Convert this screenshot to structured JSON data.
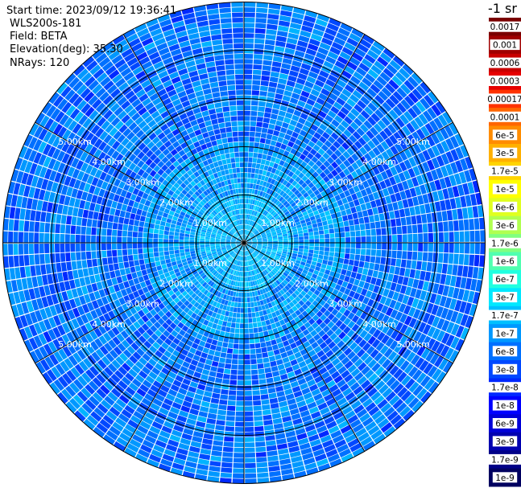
{
  "header": {
    "start_time": "Start time: 2023/09/12 19:36:41",
    "instrument": "WLS200s-181",
    "field": "Field: BETA",
    "elevation": "Elevation(deg): 35.30",
    "nrays": "NRays: 120"
  },
  "colorbar": {
    "title": "-1 sr",
    "labels": [
      "0.0017",
      "0.001",
      "0.0006",
      "0.0003",
      "0.00017",
      "0.0001",
      "6e-5",
      "3e-5",
      "1.7e-5",
      "1e-5",
      "6e-6",
      "3e-6",
      "1.7e-6",
      "1e-6",
      "6e-7",
      "3e-7",
      "1.7e-7",
      "1e-7",
      "6e-8",
      "3e-8",
      "1.7e-8",
      "1e-8",
      "6e-9",
      "3e-9",
      "1.7e-9",
      "1e-9"
    ],
    "colors": [
      "#7a0000",
      "#a00000",
      "#c80000",
      "#e60000",
      "#ff3300",
      "#ff6600",
      "#ff8c00",
      "#ffb000",
      "#ffd400",
      "#ffff00",
      "#e0ff20",
      "#b0ff50",
      "#80ff80",
      "#50ffb0",
      "#20ffe0",
      "#00e8ff",
      "#00c0ff",
      "#0098ff",
      "#0070ff",
      "#0048ff",
      "#0028ff",
      "#0000ff",
      "#0000d8",
      "#0000b0",
      "#000088",
      "#000060"
    ]
  },
  "chart_data": {
    "type": "heatmap",
    "projection": "polar-ppi",
    "nrays": 120,
    "max_range_km": 5.0,
    "range_rings_km": [
      1.0,
      2.0,
      3.0,
      4.0,
      5.0
    ],
    "ring_labels": [
      "1.00km",
      "2.00km",
      "3.00km",
      "4.00km",
      "5.00km"
    ],
    "spoke_angles_deg": [
      0,
      30,
      60,
      90,
      120,
      150
    ],
    "field": "BETA",
    "value_range": [
      1e-09,
      0.0017
    ],
    "scale": "log",
    "typical_value_range": [
      6e-09,
      1e-07
    ]
  }
}
